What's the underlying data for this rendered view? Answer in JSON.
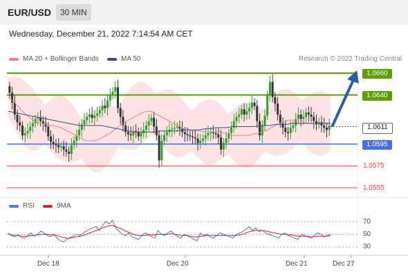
{
  "header": {
    "pair": "EUR/USD",
    "timeframe": "30 MIN"
  },
  "datetime": "Wednesday, December 21, 2022 7:14:54 AM CET",
  "legend": {
    "ma20": "MA 20 + Bollinger Bands",
    "ma50": "MA 50",
    "credit": "Research © 2022 Trading Central"
  },
  "colors": {
    "ma20": "#f08080",
    "ma50": "#2e4e8a",
    "bullish": "#2e9e2e",
    "bearish": "#333333",
    "resistance": "#5aa000",
    "support": "#4a6ede",
    "secondary_support": "#e84a4a",
    "arrow": "#2f5fa3",
    "rsi": "#5577dd",
    "rsi_ma": "#e02020"
  },
  "chart_data": [
    {
      "type": "candlestick",
      "series_names": [
        "MA 20 + Bollinger Bands",
        "MA 50"
      ],
      "ylim": [
        1.054,
        1.067
      ],
      "x_labels": [
        "Dec 18",
        "Dec 20",
        "Dec 21",
        "Dec 27"
      ],
      "current_price": "1.0611",
      "levels": [
        {
          "label": "1.0660",
          "value": 1.066,
          "kind": "resistance"
        },
        {
          "label": "1.0640",
          "value": 1.064,
          "kind": "resistance"
        },
        {
          "label": "1.0611",
          "value": 1.0611,
          "kind": "current"
        },
        {
          "label": "1.0595",
          "value": 1.0595,
          "kind": "support"
        },
        {
          "label": "1.0575",
          "value": 1.0575,
          "kind": "secondary_support"
        },
        {
          "label": "1.0555",
          "value": 1.0555,
          "kind": "secondary_support"
        }
      ],
      "projection": {
        "direction": "up",
        "from": 1.0612,
        "to": 1.066
      },
      "closes": [
        1.0642,
        1.0633,
        1.0622,
        1.0615,
        1.0612,
        1.0603,
        1.0605,
        1.0607,
        1.0611,
        1.0614,
        1.0618,
        1.0619,
        1.0616,
        1.0614,
        1.0611,
        1.0602,
        1.0597,
        1.0595,
        1.0594,
        1.0592,
        1.0593,
        1.059,
        1.0588,
        1.0586,
        1.0594,
        1.0598,
        1.0603,
        1.0608,
        1.0613,
        1.0617,
        1.062,
        1.0622,
        1.0619,
        1.0621,
        1.0623,
        1.0626,
        1.063,
        1.0628,
        1.0635,
        1.064,
        1.0643,
        1.0647,
        1.0628,
        1.062,
        1.0612,
        1.0606,
        1.0604,
        1.0603,
        1.0607,
        1.0606,
        1.0602,
        1.0605,
        1.0608,
        1.0612,
        1.0616,
        1.0619,
        1.0611,
        1.0603,
        1.058,
        1.0598,
        1.0603,
        1.0606,
        1.0608,
        1.0609,
        1.061,
        1.0611,
        1.0609,
        1.0606,
        1.0604,
        1.0603,
        1.0602,
        1.0601,
        1.06,
        1.0596,
        1.0598,
        1.06,
        1.0603,
        1.0605,
        1.0606,
        1.0605,
        1.0604,
        1.0601,
        1.059,
        1.0596,
        1.06,
        1.0605,
        1.061,
        1.0616,
        1.062,
        1.0622,
        1.0627,
        1.0622,
        1.0625,
        1.0628,
        1.0633,
        1.063,
        1.0616,
        1.0603,
        1.0612,
        1.0621,
        1.064,
        1.0652,
        1.0638,
        1.0632,
        1.0622,
        1.0614,
        1.061,
        1.0606,
        1.0605,
        1.061,
        1.0612,
        1.0618,
        1.0622,
        1.0618,
        1.062,
        1.0624,
        1.0622,
        1.062,
        1.0616,
        1.0613,
        1.0615,
        1.0612,
        1.061,
        1.0608,
        1.0612
      ],
      "ma20": [
        1.0638,
        1.0635,
        1.0631,
        1.0627,
        1.0623,
        1.062,
        1.0617,
        1.0615,
        1.0614,
        1.0613,
        1.0612,
        1.0612,
        1.0611,
        1.061,
        1.0608,
        1.0606,
        1.0604,
        1.0602,
        1.06,
        1.0598,
        1.0598,
        1.0598,
        1.0599,
        1.0601,
        1.0603,
        1.0605,
        1.0608,
        1.0611,
        1.0613,
        1.0616,
        1.0618,
        1.062,
        1.0622,
        1.0624,
        1.0625,
        1.0625,
        1.0623,
        1.0621,
        1.0619,
        1.0617,
        1.0615,
        1.0613,
        1.0611,
        1.0609,
        1.0608,
        1.0607,
        1.0607,
        1.0607,
        1.0606,
        1.0606,
        1.0606,
        1.0606,
        1.0606,
        1.0605,
        1.0604,
        1.0603,
        1.0603,
        1.0603,
        1.0603,
        1.0603,
        1.0604,
        1.0605,
        1.0606,
        1.0607,
        1.0609,
        1.0611,
        1.0613,
        1.0615,
        1.0616,
        1.0617,
        1.0617,
        1.0617,
        1.0616,
        1.0615,
        1.0614,
        1.0614,
        1.0614,
        1.0614,
        1.0614,
        1.0614
      ],
      "ma50": [
        1.0625,
        1.0624,
        1.0623,
        1.0622,
        1.0621,
        1.062,
        1.0619,
        1.0618,
        1.0617,
        1.0616,
        1.0615,
        1.0614,
        1.0613,
        1.0612,
        1.0612,
        1.0612,
        1.0612,
        1.0612,
        1.0611,
        1.061,
        1.0609,
        1.0608,
        1.0607,
        1.0606,
        1.0606,
        1.0606,
        1.0606,
        1.0606,
        1.0607,
        1.0607,
        1.0607,
        1.0607,
        1.0608,
        1.0608,
        1.0608,
        1.0608,
        1.0609,
        1.0609,
        1.061,
        1.061,
        1.061,
        1.0611,
        1.0611,
        1.0611,
        1.0611,
        1.0611,
        1.0612,
        1.0612,
        1.0612,
        1.0613,
        1.0613,
        1.0613,
        1.0614,
        1.0614,
        1.0614,
        1.0614,
        1.0614,
        1.0614,
        1.0614,
        1.0614
      ]
    },
    {
      "type": "line",
      "series": [
        {
          "name": "RSI"
        },
        {
          "name": "9MA"
        }
      ],
      "ylim": [
        20,
        80
      ],
      "reference_lines": [
        30,
        50,
        70
      ],
      "rsi": [
        52,
        48,
        46,
        50,
        45,
        44,
        48,
        52,
        47,
        50,
        55,
        52,
        48,
        46,
        50,
        44,
        40,
        38,
        42,
        45,
        47,
        50,
        48,
        52,
        55,
        58,
        60,
        62,
        56,
        64,
        70,
        66,
        72,
        60,
        55,
        50,
        48,
        52,
        46,
        44,
        42,
        48,
        52,
        50,
        46,
        44,
        56,
        50,
        48,
        52,
        55,
        50,
        46,
        44,
        50,
        48,
        45,
        42,
        40,
        52,
        48,
        50,
        46,
        44,
        48,
        52,
        50,
        48,
        46,
        44,
        50,
        52,
        54,
        58,
        62,
        56,
        60,
        54,
        56,
        52,
        50,
        48,
        46,
        44,
        50,
        52,
        48,
        46,
        44,
        42,
        50,
        48,
        46,
        44,
        48,
        52,
        50,
        46,
        48,
        50
      ],
      "rsi_ma": [
        50,
        49,
        48,
        48,
        47,
        47,
        47,
        48,
        48,
        49,
        50,
        50,
        50,
        49,
        49,
        48,
        46,
        45,
        44,
        44,
        45,
        46,
        47,
        48,
        50,
        52,
        54,
        56,
        58,
        60,
        62,
        63,
        64,
        62,
        60,
        58,
        55,
        53,
        51,
        49,
        48,
        48,
        48,
        49,
        49,
        49,
        50,
        50,
        50,
        50,
        51,
        50,
        49,
        48,
        48,
        48,
        47,
        46,
        46,
        47,
        47,
        48,
        48,
        48,
        48,
        48,
        48,
        48,
        48,
        48,
        48,
        49,
        50,
        52,
        54,
        55,
        56,
        56,
        56,
        55,
        54,
        53,
        52,
        51,
        50,
        50,
        49,
        49,
        48,
        47,
        47,
        47,
        47,
        46,
        46,
        47,
        47,
        47,
        47,
        48
      ]
    }
  ]
}
